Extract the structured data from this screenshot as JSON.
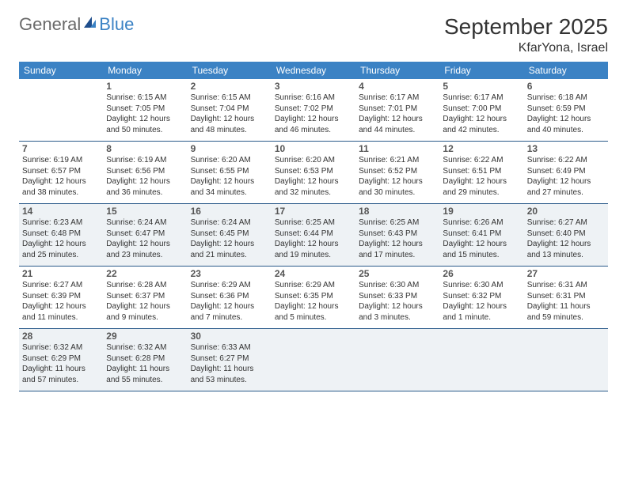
{
  "logo": {
    "general": "General",
    "blue": "Blue"
  },
  "title": "September 2025",
  "location": "KfarYona, Israel",
  "colors": {
    "header_bg": "#3b82c4",
    "row_divider": "#2a5a8a",
    "shaded_cell": "#eef2f5",
    "text": "#333333",
    "logo_gray": "#6a6a6a",
    "logo_blue": "#3b82c4",
    "logo_dark": "#1f4e8c"
  },
  "weekdays": [
    "Sunday",
    "Monday",
    "Tuesday",
    "Wednesday",
    "Thursday",
    "Friday",
    "Saturday"
  ],
  "weeks": [
    [
      null,
      {
        "n": "1",
        "sr": "Sunrise: 6:15 AM",
        "ss": "Sunset: 7:05 PM",
        "dl": "Daylight: 12 hours and 50 minutes."
      },
      {
        "n": "2",
        "sr": "Sunrise: 6:15 AM",
        "ss": "Sunset: 7:04 PM",
        "dl": "Daylight: 12 hours and 48 minutes."
      },
      {
        "n": "3",
        "sr": "Sunrise: 6:16 AM",
        "ss": "Sunset: 7:02 PM",
        "dl": "Daylight: 12 hours and 46 minutes."
      },
      {
        "n": "4",
        "sr": "Sunrise: 6:17 AM",
        "ss": "Sunset: 7:01 PM",
        "dl": "Daylight: 12 hours and 44 minutes."
      },
      {
        "n": "5",
        "sr": "Sunrise: 6:17 AM",
        "ss": "Sunset: 7:00 PM",
        "dl": "Daylight: 12 hours and 42 minutes."
      },
      {
        "n": "6",
        "sr": "Sunrise: 6:18 AM",
        "ss": "Sunset: 6:59 PM",
        "dl": "Daylight: 12 hours and 40 minutes."
      }
    ],
    [
      {
        "n": "7",
        "sr": "Sunrise: 6:19 AM",
        "ss": "Sunset: 6:57 PM",
        "dl": "Daylight: 12 hours and 38 minutes."
      },
      {
        "n": "8",
        "sr": "Sunrise: 6:19 AM",
        "ss": "Sunset: 6:56 PM",
        "dl": "Daylight: 12 hours and 36 minutes."
      },
      {
        "n": "9",
        "sr": "Sunrise: 6:20 AM",
        "ss": "Sunset: 6:55 PM",
        "dl": "Daylight: 12 hours and 34 minutes."
      },
      {
        "n": "10",
        "sr": "Sunrise: 6:20 AM",
        "ss": "Sunset: 6:53 PM",
        "dl": "Daylight: 12 hours and 32 minutes."
      },
      {
        "n": "11",
        "sr": "Sunrise: 6:21 AM",
        "ss": "Sunset: 6:52 PM",
        "dl": "Daylight: 12 hours and 30 minutes."
      },
      {
        "n": "12",
        "sr": "Sunrise: 6:22 AM",
        "ss": "Sunset: 6:51 PM",
        "dl": "Daylight: 12 hours and 29 minutes."
      },
      {
        "n": "13",
        "sr": "Sunrise: 6:22 AM",
        "ss": "Sunset: 6:49 PM",
        "dl": "Daylight: 12 hours and 27 minutes."
      }
    ],
    [
      {
        "n": "14",
        "sr": "Sunrise: 6:23 AM",
        "ss": "Sunset: 6:48 PM",
        "dl": "Daylight: 12 hours and 25 minutes."
      },
      {
        "n": "15",
        "sr": "Sunrise: 6:24 AM",
        "ss": "Sunset: 6:47 PM",
        "dl": "Daylight: 12 hours and 23 minutes."
      },
      {
        "n": "16",
        "sr": "Sunrise: 6:24 AM",
        "ss": "Sunset: 6:45 PM",
        "dl": "Daylight: 12 hours and 21 minutes."
      },
      {
        "n": "17",
        "sr": "Sunrise: 6:25 AM",
        "ss": "Sunset: 6:44 PM",
        "dl": "Daylight: 12 hours and 19 minutes."
      },
      {
        "n": "18",
        "sr": "Sunrise: 6:25 AM",
        "ss": "Sunset: 6:43 PM",
        "dl": "Daylight: 12 hours and 17 minutes."
      },
      {
        "n": "19",
        "sr": "Sunrise: 6:26 AM",
        "ss": "Sunset: 6:41 PM",
        "dl": "Daylight: 12 hours and 15 minutes."
      },
      {
        "n": "20",
        "sr": "Sunrise: 6:27 AM",
        "ss": "Sunset: 6:40 PM",
        "dl": "Daylight: 12 hours and 13 minutes."
      }
    ],
    [
      {
        "n": "21",
        "sr": "Sunrise: 6:27 AM",
        "ss": "Sunset: 6:39 PM",
        "dl": "Daylight: 12 hours and 11 minutes."
      },
      {
        "n": "22",
        "sr": "Sunrise: 6:28 AM",
        "ss": "Sunset: 6:37 PM",
        "dl": "Daylight: 12 hours and 9 minutes."
      },
      {
        "n": "23",
        "sr": "Sunrise: 6:29 AM",
        "ss": "Sunset: 6:36 PM",
        "dl": "Daylight: 12 hours and 7 minutes."
      },
      {
        "n": "24",
        "sr": "Sunrise: 6:29 AM",
        "ss": "Sunset: 6:35 PM",
        "dl": "Daylight: 12 hours and 5 minutes."
      },
      {
        "n": "25",
        "sr": "Sunrise: 6:30 AM",
        "ss": "Sunset: 6:33 PM",
        "dl": "Daylight: 12 hours and 3 minutes."
      },
      {
        "n": "26",
        "sr": "Sunrise: 6:30 AM",
        "ss": "Sunset: 6:32 PM",
        "dl": "Daylight: 12 hours and 1 minute."
      },
      {
        "n": "27",
        "sr": "Sunrise: 6:31 AM",
        "ss": "Sunset: 6:31 PM",
        "dl": "Daylight: 11 hours and 59 minutes."
      }
    ],
    [
      {
        "n": "28",
        "sr": "Sunrise: 6:32 AM",
        "ss": "Sunset: 6:29 PM",
        "dl": "Daylight: 11 hours and 57 minutes."
      },
      {
        "n": "29",
        "sr": "Sunrise: 6:32 AM",
        "ss": "Sunset: 6:28 PM",
        "dl": "Daylight: 11 hours and 55 minutes."
      },
      {
        "n": "30",
        "sr": "Sunrise: 6:33 AM",
        "ss": "Sunset: 6:27 PM",
        "dl": "Daylight: 11 hours and 53 minutes."
      },
      null,
      null,
      null,
      null
    ]
  ],
  "shaded_rows": [
    2,
    4
  ]
}
